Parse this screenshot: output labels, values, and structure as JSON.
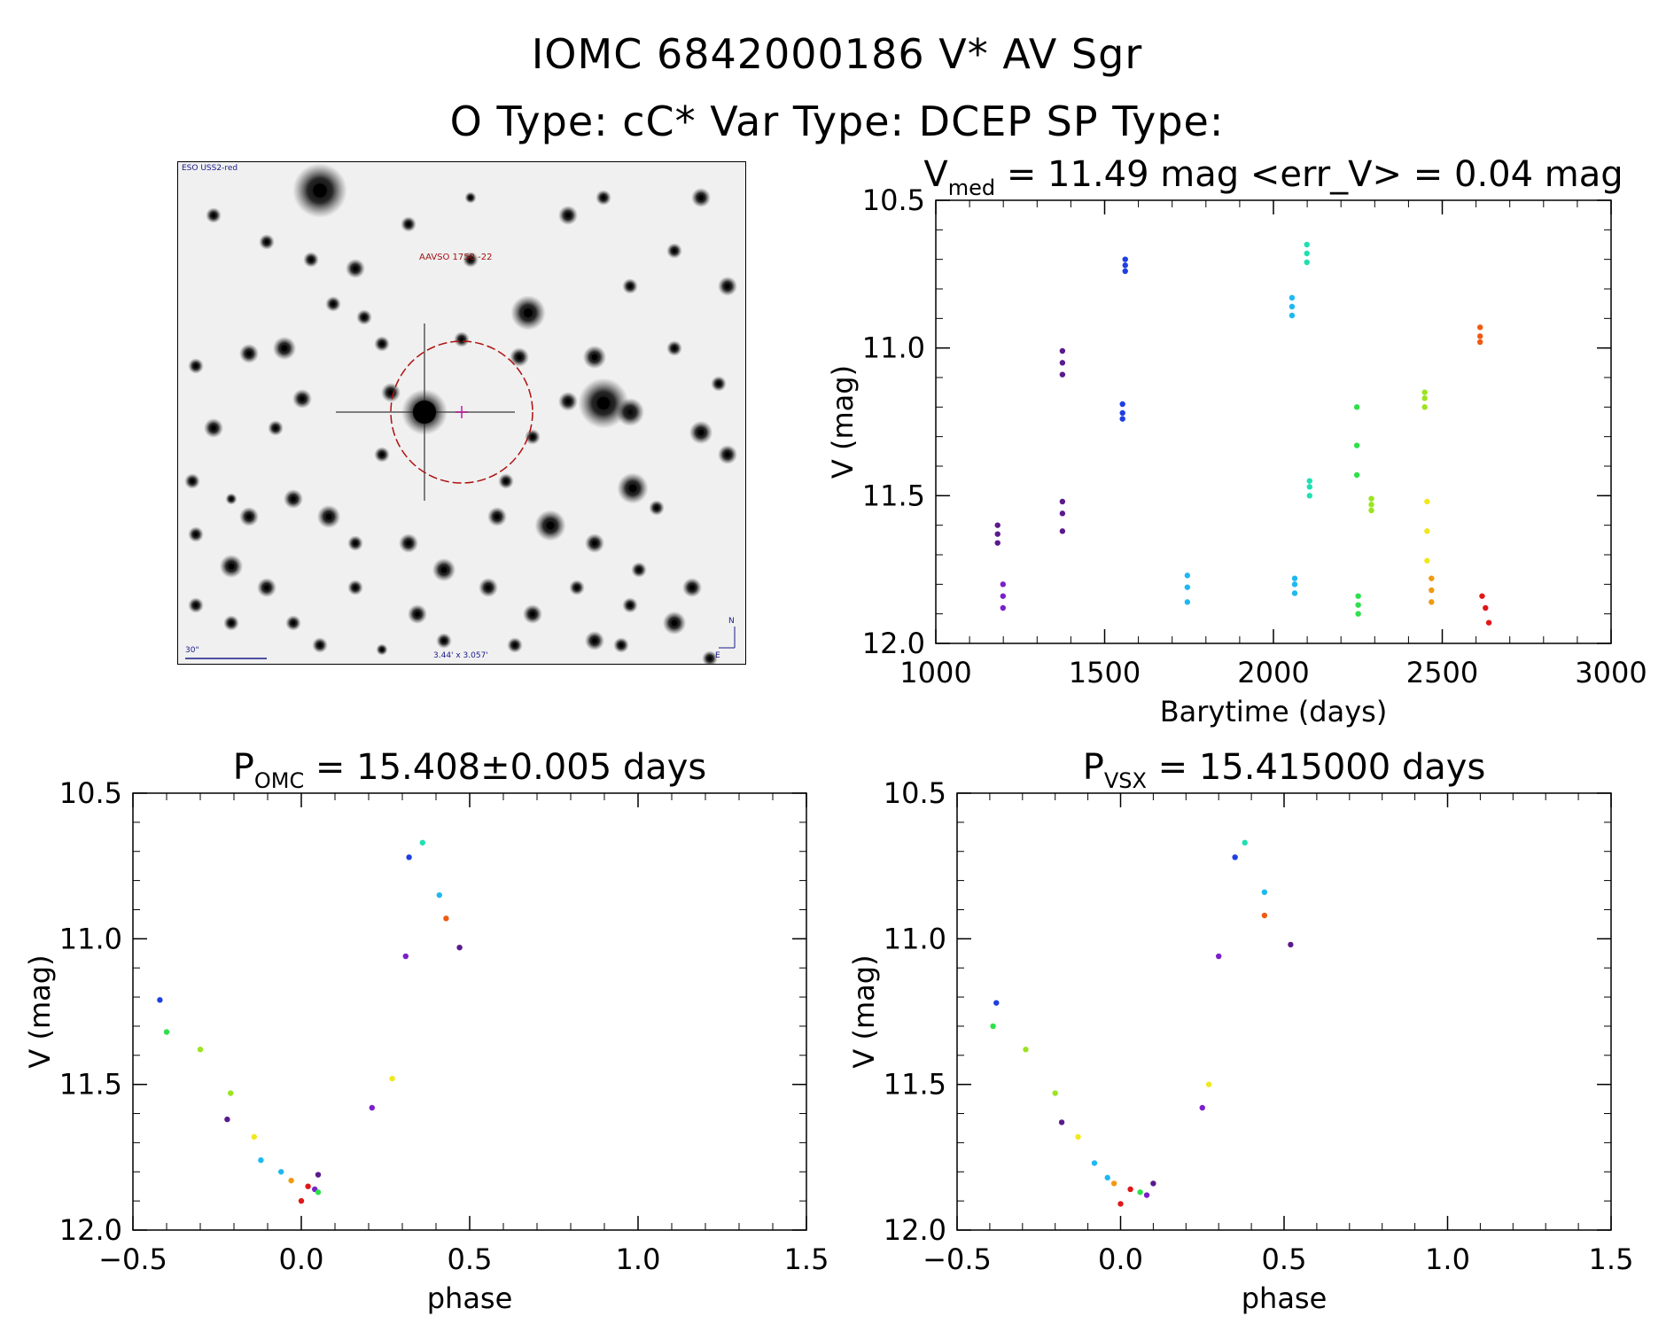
{
  "header": {
    "line1": "IOMC 6842000186   V* AV Sgr",
    "line2": "O Type: cC*  Var Type: DCEP  SP Type:"
  },
  "finder": {
    "survey_label": "ESO USS2-red",
    "target_label": "AAVSO 1758 -22",
    "scale_label": "30\"",
    "fov_label": "3.44' x 3.057'",
    "north_label": "N",
    "east_label": "E"
  },
  "colors": {
    "purple": "#5a1a8c",
    "violet": "#7a1fc9",
    "blue": "#1f3fe0",
    "skyblue": "#1fb8f0",
    "teal": "#1fe0b0",
    "green": "#2ee04a",
    "lime": "#9be41f",
    "yellow": "#f0e81f",
    "orange": "#f09a12",
    "redorange": "#f05a12",
    "red": "#e01818",
    "darkpurple": "#4a1030"
  },
  "chart_data": [
    {
      "id": "lightcurve",
      "type": "scatter",
      "title_main": "V",
      "title_sub": "med",
      "title_rest": " = 11.49 mag <err_V> = 0.04 mag",
      "xlabel": "Barytime (days)",
      "ylabel": "V (mag)",
      "xlim": [
        1000,
        3000
      ],
      "ylim": [
        12.0,
        10.5
      ],
      "xticks": [
        1000,
        1500,
        2000,
        2500,
        3000
      ],
      "xtick_labels": [
        "1000",
        "1500",
        "2000",
        "2500",
        "3000"
      ],
      "yticks": [
        10.5,
        11.0,
        11.5,
        12.0
      ],
      "ytick_labels": [
        "10.5",
        "11.0",
        "11.5",
        "12.0"
      ],
      "series": [
        {
          "name": "purple",
          "color": "#5a1a8c",
          "x": [
            1183,
            1183,
            1183
          ],
          "y": [
            11.6,
            11.63,
            11.66
          ]
        },
        {
          "name": "violet",
          "color": "#7a1fc9",
          "x": [
            1199,
            1199,
            1199
          ],
          "y": [
            11.8,
            11.84,
            11.88
          ]
        },
        {
          "name": "purple",
          "color": "#5a1a8c",
          "x": [
            1375,
            1375,
            1375
          ],
          "y": [
            11.01,
            11.05,
            11.09
          ]
        },
        {
          "name": "purple",
          "color": "#5a1a8c",
          "x": [
            1375,
            1375,
            1375
          ],
          "y": [
            11.52,
            11.56,
            11.62
          ]
        },
        {
          "name": "blue",
          "color": "#1f3fe0",
          "x": [
            1553,
            1553,
            1553
          ],
          "y": [
            11.19,
            11.22,
            11.24
          ]
        },
        {
          "name": "blue",
          "color": "#1f3fe0",
          "x": [
            1561,
            1561,
            1561
          ],
          "y": [
            10.7,
            10.72,
            10.74
          ]
        },
        {
          "name": "skyblue",
          "color": "#1fb8f0",
          "x": [
            1745,
            1745,
            1745
          ],
          "y": [
            11.77,
            11.81,
            11.86
          ]
        },
        {
          "name": "skyblue",
          "color": "#1fb8f0",
          "x": [
            2055,
            2055,
            2055
          ],
          "y": [
            10.83,
            10.86,
            10.89
          ]
        },
        {
          "name": "skyblue",
          "color": "#1fb8f0",
          "x": [
            2063,
            2063,
            2063
          ],
          "y": [
            11.78,
            11.8,
            11.83
          ]
        },
        {
          "name": "teal",
          "color": "#1fe0b0",
          "x": [
            2099,
            2099,
            2099
          ],
          "y": [
            10.65,
            10.68,
            10.71
          ]
        },
        {
          "name": "teal",
          "color": "#1fe0b0",
          "x": [
            2107,
            2107,
            2107
          ],
          "y": [
            11.45,
            11.47,
            11.5
          ]
        },
        {
          "name": "green",
          "color": "#2ee04a",
          "x": [
            2247,
            2247,
            2247
          ],
          "y": [
            11.2,
            11.33,
            11.43
          ]
        },
        {
          "name": "green",
          "color": "#2ee04a",
          "x": [
            2251,
            2251,
            2251
          ],
          "y": [
            11.84,
            11.87,
            11.9
          ]
        },
        {
          "name": "lime",
          "color": "#9be41f",
          "x": [
            2290,
            2290,
            2290
          ],
          "y": [
            11.51,
            11.53,
            11.55
          ]
        },
        {
          "name": "lime",
          "color": "#9be41f",
          "x": [
            2448,
            2448,
            2448
          ],
          "y": [
            11.15,
            11.17,
            11.2
          ]
        },
        {
          "name": "yellow",
          "color": "#f0e81f",
          "x": [
            2455,
            2455,
            2455
          ],
          "y": [
            11.52,
            11.62,
            11.72
          ]
        },
        {
          "name": "orange",
          "color": "#f09a12",
          "x": [
            2468,
            2468,
            2468
          ],
          "y": [
            11.78,
            11.82,
            11.86
          ]
        },
        {
          "name": "redorange",
          "color": "#f05a12",
          "x": [
            2612,
            2612,
            2612
          ],
          "y": [
            10.93,
            10.96,
            10.98
          ]
        },
        {
          "name": "red",
          "color": "#e01818",
          "x": [
            2618,
            2628,
            2638
          ],
          "y": [
            11.84,
            11.88,
            11.93
          ]
        }
      ]
    },
    {
      "id": "phase_omc",
      "type": "scatter",
      "title_main": "P",
      "title_sub": "OMC",
      "title_rest": " = 15.408±0.005 days",
      "xlabel": "phase",
      "ylabel": "V (mag)",
      "xlim": [
        -0.5,
        1.5
      ],
      "ylim": [
        12.0,
        10.5
      ],
      "xticks": [
        -0.5,
        0.0,
        0.5,
        1.0,
        1.5
      ],
      "xtick_labels": [
        "−0.5",
        "0.0",
        "0.5",
        "1.0",
        "1.5"
      ],
      "yticks": [
        10.5,
        11.0,
        11.5,
        12.0
      ],
      "ytick_labels": [
        "10.5",
        "11.0",
        "11.5",
        "12.0"
      ],
      "series": [
        {
          "name": "purple",
          "color": "#5a1a8c",
          "x": [
            -0.22,
            0.05,
            0.47
          ],
          "y": [
            11.62,
            11.81,
            11.03
          ]
        },
        {
          "name": "violet",
          "color": "#7a1fc9",
          "x": [
            0.04,
            0.21,
            0.31
          ],
          "y": [
            11.86,
            11.58,
            11.06
          ]
        },
        {
          "name": "blue",
          "color": "#1f3fe0",
          "x": [
            -0.42,
            0.32
          ],
          "y": [
            11.21,
            10.72
          ]
        },
        {
          "name": "skyblue",
          "color": "#1fb8f0",
          "x": [
            -0.12,
            -0.06,
            0.41
          ],
          "y": [
            11.76,
            11.8,
            10.85
          ]
        },
        {
          "name": "teal",
          "color": "#1fe0b0",
          "x": [
            0.36
          ],
          "y": [
            10.67
          ]
        },
        {
          "name": "green",
          "color": "#2ee04a",
          "x": [
            -0.4,
            0.05
          ],
          "y": [
            11.32,
            11.87
          ]
        },
        {
          "name": "lime",
          "color": "#9be41f",
          "x": [
            -0.3,
            -0.21
          ],
          "y": [
            11.38,
            11.53
          ]
        },
        {
          "name": "yellow",
          "color": "#f0e81f",
          "x": [
            -0.14,
            0.27
          ],
          "y": [
            11.68,
            11.48
          ]
        },
        {
          "name": "orange",
          "color": "#f09a12",
          "x": [
            -0.03
          ],
          "y": [
            11.83
          ]
        },
        {
          "name": "redorange",
          "color": "#f05a12",
          "x": [
            0.43
          ],
          "y": [
            10.93
          ]
        },
        {
          "name": "red",
          "color": "#e01818",
          "x": [
            0.0,
            0.02
          ],
          "y": [
            11.9,
            11.85
          ]
        }
      ]
    },
    {
      "id": "phase_vsx",
      "type": "scatter",
      "title_main": "P",
      "title_sub": "VSX",
      "title_rest": " = 15.415000 days",
      "xlabel": "phase",
      "ylabel": "V (mag)",
      "xlim": [
        -0.5,
        1.5
      ],
      "ylim": [
        12.0,
        10.5
      ],
      "xticks": [
        -0.5,
        0.0,
        0.5,
        1.0,
        1.5
      ],
      "xtick_labels": [
        "−0.5",
        "0.0",
        "0.5",
        "1.0",
        "1.5"
      ],
      "yticks": [
        10.5,
        11.0,
        11.5,
        12.0
      ],
      "ytick_labels": [
        "10.5",
        "11.0",
        "11.5",
        "12.0"
      ],
      "series": [
        {
          "name": "purple",
          "color": "#5a1a8c",
          "x": [
            -0.18,
            0.1,
            0.52
          ],
          "y": [
            11.63,
            11.84,
            11.02
          ]
        },
        {
          "name": "violet",
          "color": "#7a1fc9",
          "x": [
            0.08,
            0.25,
            0.3
          ],
          "y": [
            11.88,
            11.58,
            11.06
          ]
        },
        {
          "name": "blue",
          "color": "#1f3fe0",
          "x": [
            -0.38,
            0.35
          ],
          "y": [
            11.22,
            10.72
          ]
        },
        {
          "name": "skyblue",
          "color": "#1fb8f0",
          "x": [
            -0.08,
            -0.04,
            0.44
          ],
          "y": [
            11.77,
            11.82,
            10.84
          ]
        },
        {
          "name": "teal",
          "color": "#1fe0b0",
          "x": [
            0.38
          ],
          "y": [
            10.67
          ]
        },
        {
          "name": "green",
          "color": "#2ee04a",
          "x": [
            -0.39,
            0.06
          ],
          "y": [
            11.3,
            11.87
          ]
        },
        {
          "name": "lime",
          "color": "#9be41f",
          "x": [
            -0.29,
            -0.2
          ],
          "y": [
            11.38,
            11.53
          ]
        },
        {
          "name": "yellow",
          "color": "#f0e81f",
          "x": [
            -0.13,
            0.27
          ],
          "y": [
            11.68,
            11.5
          ]
        },
        {
          "name": "orange",
          "color": "#f09a12",
          "x": [
            -0.02
          ],
          "y": [
            11.84
          ]
        },
        {
          "name": "redorange",
          "color": "#f05a12",
          "x": [
            0.44
          ],
          "y": [
            10.92
          ]
        },
        {
          "name": "red",
          "color": "#e01818",
          "x": [
            0.0,
            0.03
          ],
          "y": [
            11.91,
            11.86
          ]
        }
      ]
    }
  ]
}
